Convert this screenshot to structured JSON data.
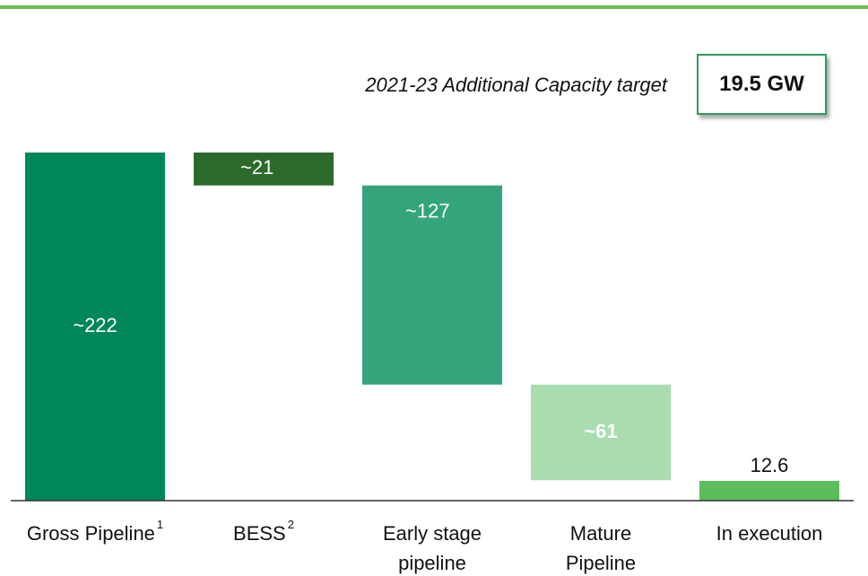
{
  "chart_data": {
    "type": "waterfall",
    "categories": [
      "Gross Pipeline",
      "BESS",
      "Early stage pipeline",
      "Mature Pipeline",
      "In execution"
    ],
    "footnote_marks": [
      "1",
      "2",
      null,
      null,
      null
    ],
    "values": [
      222,
      21,
      127,
      61,
      12.6
    ],
    "value_labels": [
      "~222",
      "~21",
      "~127",
      "~61",
      "12.6"
    ],
    "measure": [
      "total",
      "decrease",
      "decrease",
      "decrease",
      "total"
    ],
    "colors": [
      "#00865a",
      "#2c6a2c",
      "#34a47b",
      "#a9ddb0",
      "#5cbe5a"
    ],
    "ylim": [
      0,
      222
    ],
    "target_label": "2021-23 Additional Capacity target",
    "target": 19.5,
    "target_value_label": "19.5 GW"
  }
}
